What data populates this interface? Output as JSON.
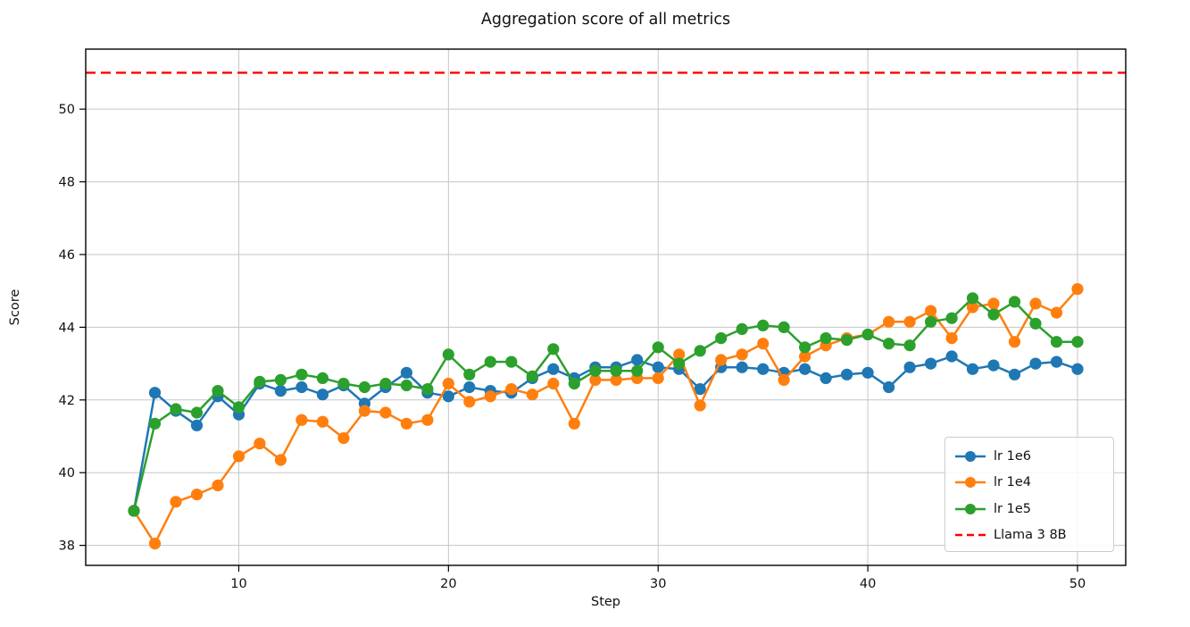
{
  "chart_data": {
    "type": "line",
    "title": "Aggregation score of all metrics",
    "xlabel": "Step",
    "ylabel": "Score",
    "x": [
      5,
      6,
      7,
      8,
      9,
      10,
      11,
      12,
      13,
      14,
      15,
      16,
      17,
      18,
      19,
      20,
      21,
      22,
      23,
      24,
      25,
      26,
      27,
      28,
      29,
      30,
      31,
      32,
      33,
      34,
      35,
      36,
      37,
      38,
      39,
      40,
      41,
      42,
      43,
      44,
      45,
      46,
      47,
      48,
      49,
      50
    ],
    "series": [
      {
        "name": "lr 1e6",
        "color": "#1f77b4",
        "values": [
          38.95,
          42.2,
          41.7,
          41.3,
          42.1,
          41.6,
          42.45,
          42.25,
          42.35,
          42.15,
          42.4,
          41.9,
          42.35,
          42.75,
          42.2,
          42.1,
          42.35,
          42.25,
          42.2,
          42.6,
          42.85,
          42.6,
          42.9,
          42.9,
          43.1,
          42.9,
          42.85,
          42.3,
          42.9,
          42.9,
          42.85,
          42.75,
          42.85,
          42.6,
          42.7,
          42.75,
          42.35,
          42.9,
          43.0,
          43.2,
          42.85,
          42.95,
          42.7,
          43.0,
          43.05,
          42.85
        ]
      },
      {
        "name": "lr 1e4",
        "color": "#ff7f0e",
        "values": [
          38.95,
          38.05,
          39.2,
          39.4,
          39.65,
          40.45,
          40.8,
          40.35,
          41.45,
          41.4,
          40.95,
          41.7,
          41.65,
          41.35,
          41.45,
          42.45,
          41.95,
          42.1,
          42.3,
          42.15,
          42.45,
          41.35,
          42.55,
          42.55,
          42.6,
          42.6,
          43.25,
          41.85,
          43.1,
          43.25,
          43.55,
          42.55,
          43.2,
          43.5,
          43.7,
          43.8,
          44.15,
          44.15,
          44.45,
          43.7,
          44.55,
          44.65,
          43.6,
          44.65,
          44.4,
          45.05
        ]
      },
      {
        "name": "lr 1e5",
        "color": "#2ca02c",
        "values": [
          38.95,
          41.35,
          41.75,
          41.65,
          42.25,
          41.8,
          42.5,
          42.55,
          42.7,
          42.6,
          42.45,
          42.35,
          42.45,
          42.4,
          42.3,
          43.25,
          42.7,
          43.05,
          43.05,
          42.65,
          43.4,
          42.45,
          42.8,
          42.8,
          42.8,
          43.45,
          43.0,
          43.35,
          43.7,
          43.95,
          44.05,
          44.0,
          43.45,
          43.7,
          43.65,
          43.8,
          43.55,
          43.5,
          44.15,
          44.25,
          44.8,
          44.35,
          44.7,
          44.1,
          43.6,
          43.6
        ]
      }
    ],
    "reference_line": {
      "name": "Llama 3 8B",
      "value": 51,
      "color": "#ff0000",
      "style": "dashed"
    },
    "xticks": [
      10,
      20,
      30,
      40,
      50
    ],
    "yticks": [
      38,
      40,
      42,
      44,
      46,
      48,
      50
    ],
    "xlim": [
      2.7,
      52.3
    ],
    "ylim": [
      37.45,
      51.65
    ],
    "grid": true,
    "legend_position": "lower right",
    "legend_entries": [
      "lr 1e6",
      "lr 1e4",
      "lr 1e5",
      "Llama 3 8B"
    ]
  }
}
